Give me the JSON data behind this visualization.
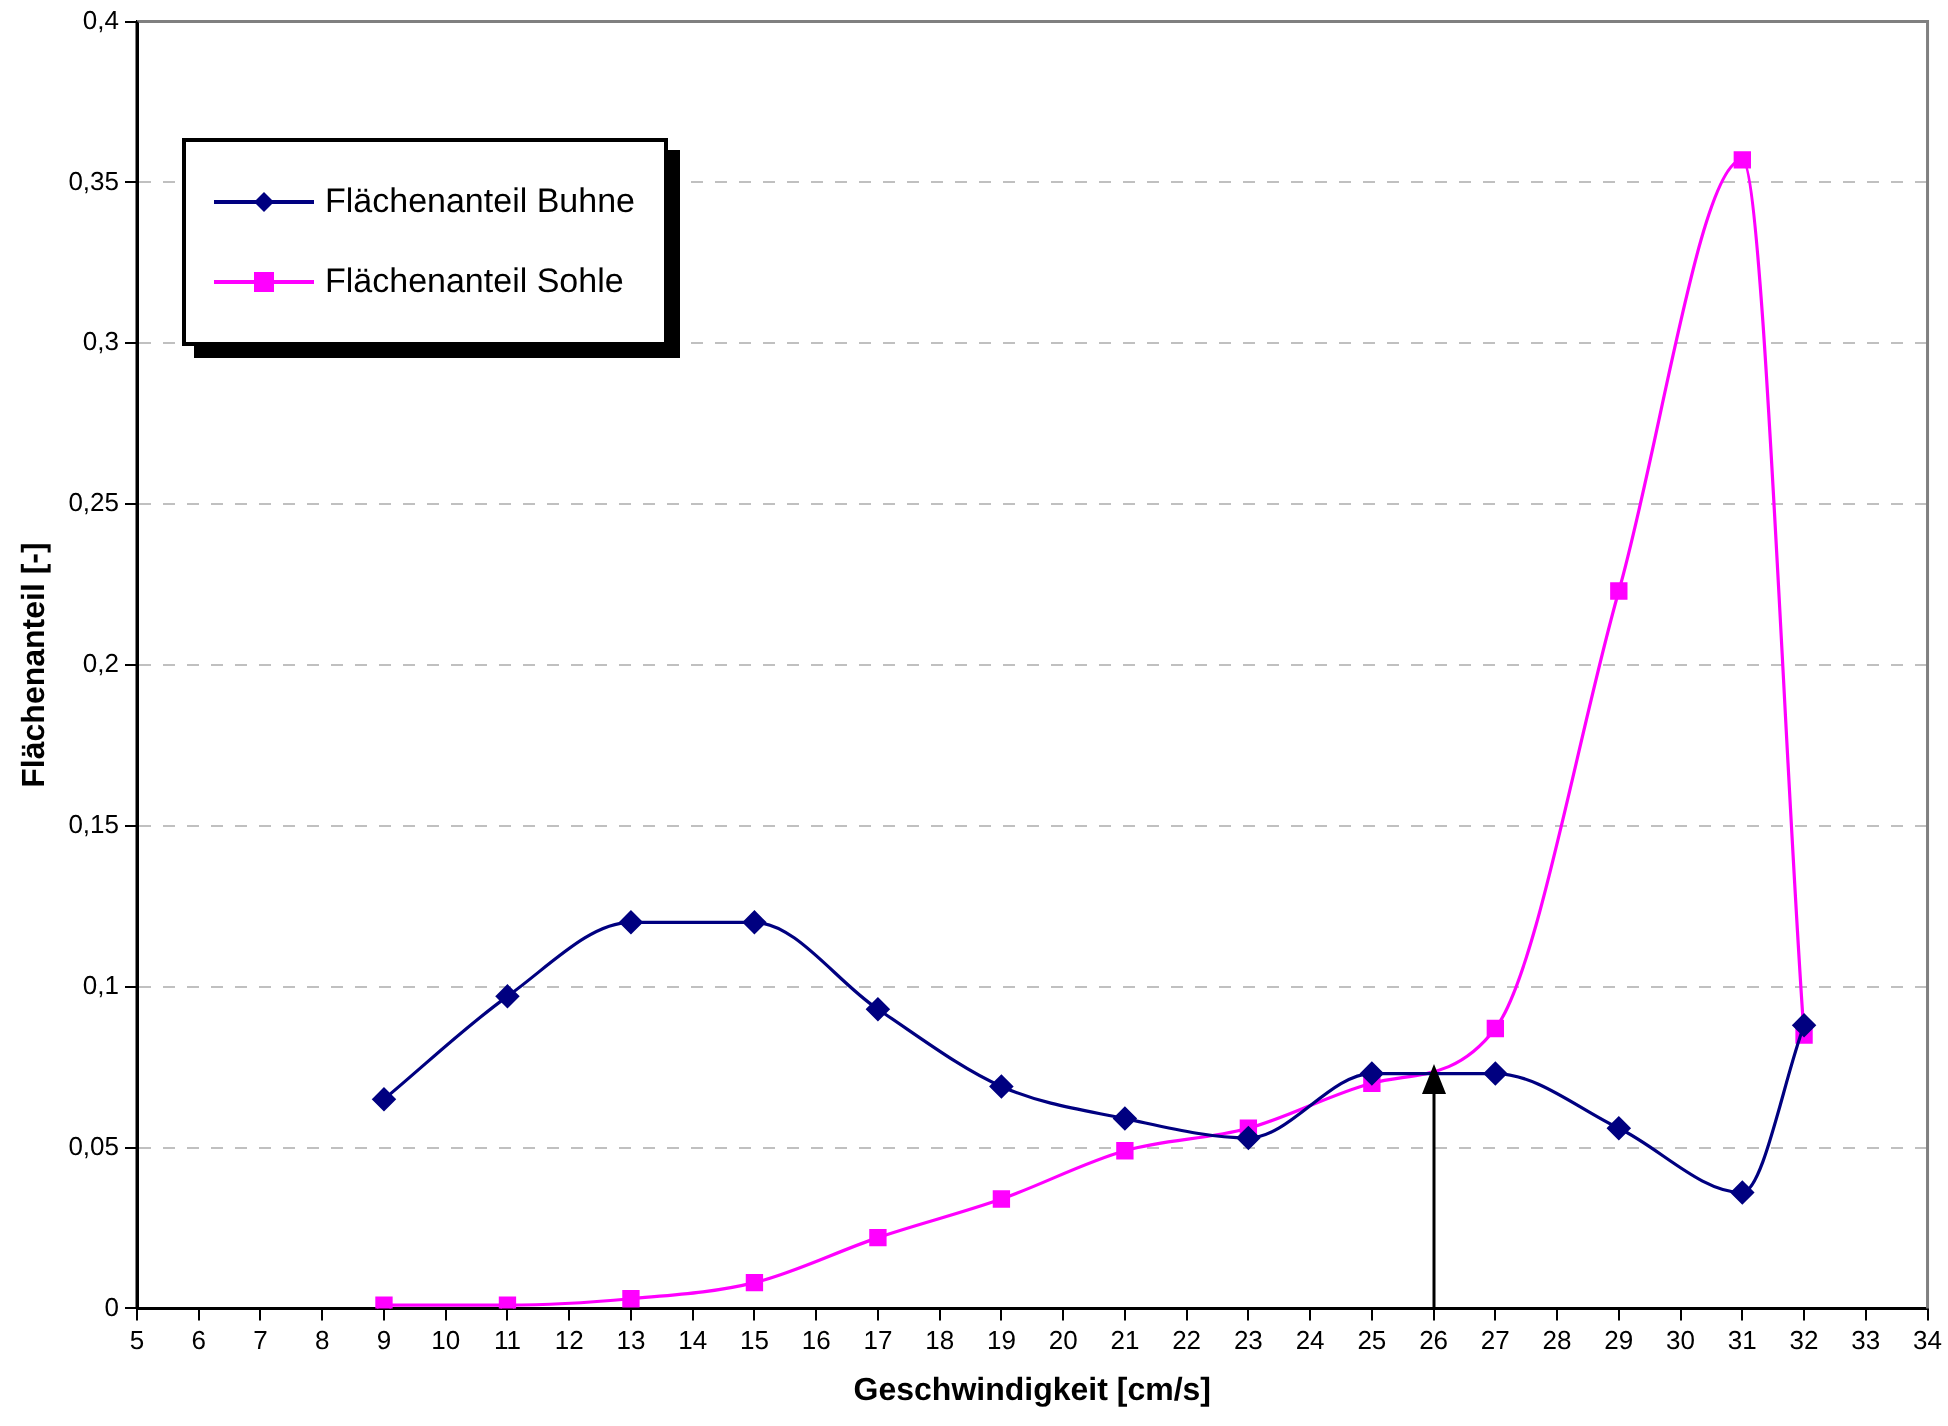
{
  "chart_data": {
    "type": "line",
    "xlabel": "Geschwindigkeit [cm/s]",
    "ylabel": "Flächenanteil [-]",
    "x": [
      9,
      11,
      13,
      15,
      17,
      19,
      21,
      23,
      25,
      27,
      29,
      31,
      32
    ],
    "series": [
      {
        "name": "Flächenanteil Buhne",
        "color": "#000080",
        "marker": "diamond",
        "values": [
          0.065,
          0.097,
          0.12,
          0.12,
          0.093,
          0.069,
          0.059,
          0.053,
          0.073,
          0.073,
          0.056,
          0.036,
          0.088
        ]
      },
      {
        "name": "Flächenanteil Sohle",
        "color": "#ff00ff",
        "marker": "square",
        "values": [
          0.001,
          0.001,
          0.003,
          0.008,
          0.022,
          0.034,
          0.049,
          0.056,
          0.07,
          0.087,
          0.223,
          0.357,
          0.085
        ]
      }
    ],
    "xlim": [
      5,
      34
    ],
    "xticks": [
      5,
      6,
      7,
      8,
      9,
      10,
      11,
      12,
      13,
      14,
      15,
      16,
      17,
      18,
      19,
      20,
      21,
      22,
      23,
      24,
      25,
      26,
      27,
      28,
      29,
      30,
      31,
      32,
      33,
      34
    ],
    "ylim": [
      0,
      0.4
    ],
    "yticks": [
      {
        "value": 0,
        "label": "0"
      },
      {
        "value": 0.05,
        "label": "0,05"
      },
      {
        "value": 0.1,
        "label": "0,1"
      },
      {
        "value": 0.15,
        "label": "0,15"
      },
      {
        "value": 0.2,
        "label": "0,2"
      },
      {
        "value": 0.25,
        "label": "0,25"
      },
      {
        "value": 0.3,
        "label": "0,3"
      },
      {
        "value": 0.35,
        "label": "0,35"
      },
      {
        "value": 0.4,
        "label": "0,4"
      }
    ],
    "ref_lines": [
      {
        "axis": "x",
        "value": 26,
        "color": "#000000"
      }
    ],
    "grid": "y",
    "legend": "top left",
    "line_style": "solid"
  }
}
